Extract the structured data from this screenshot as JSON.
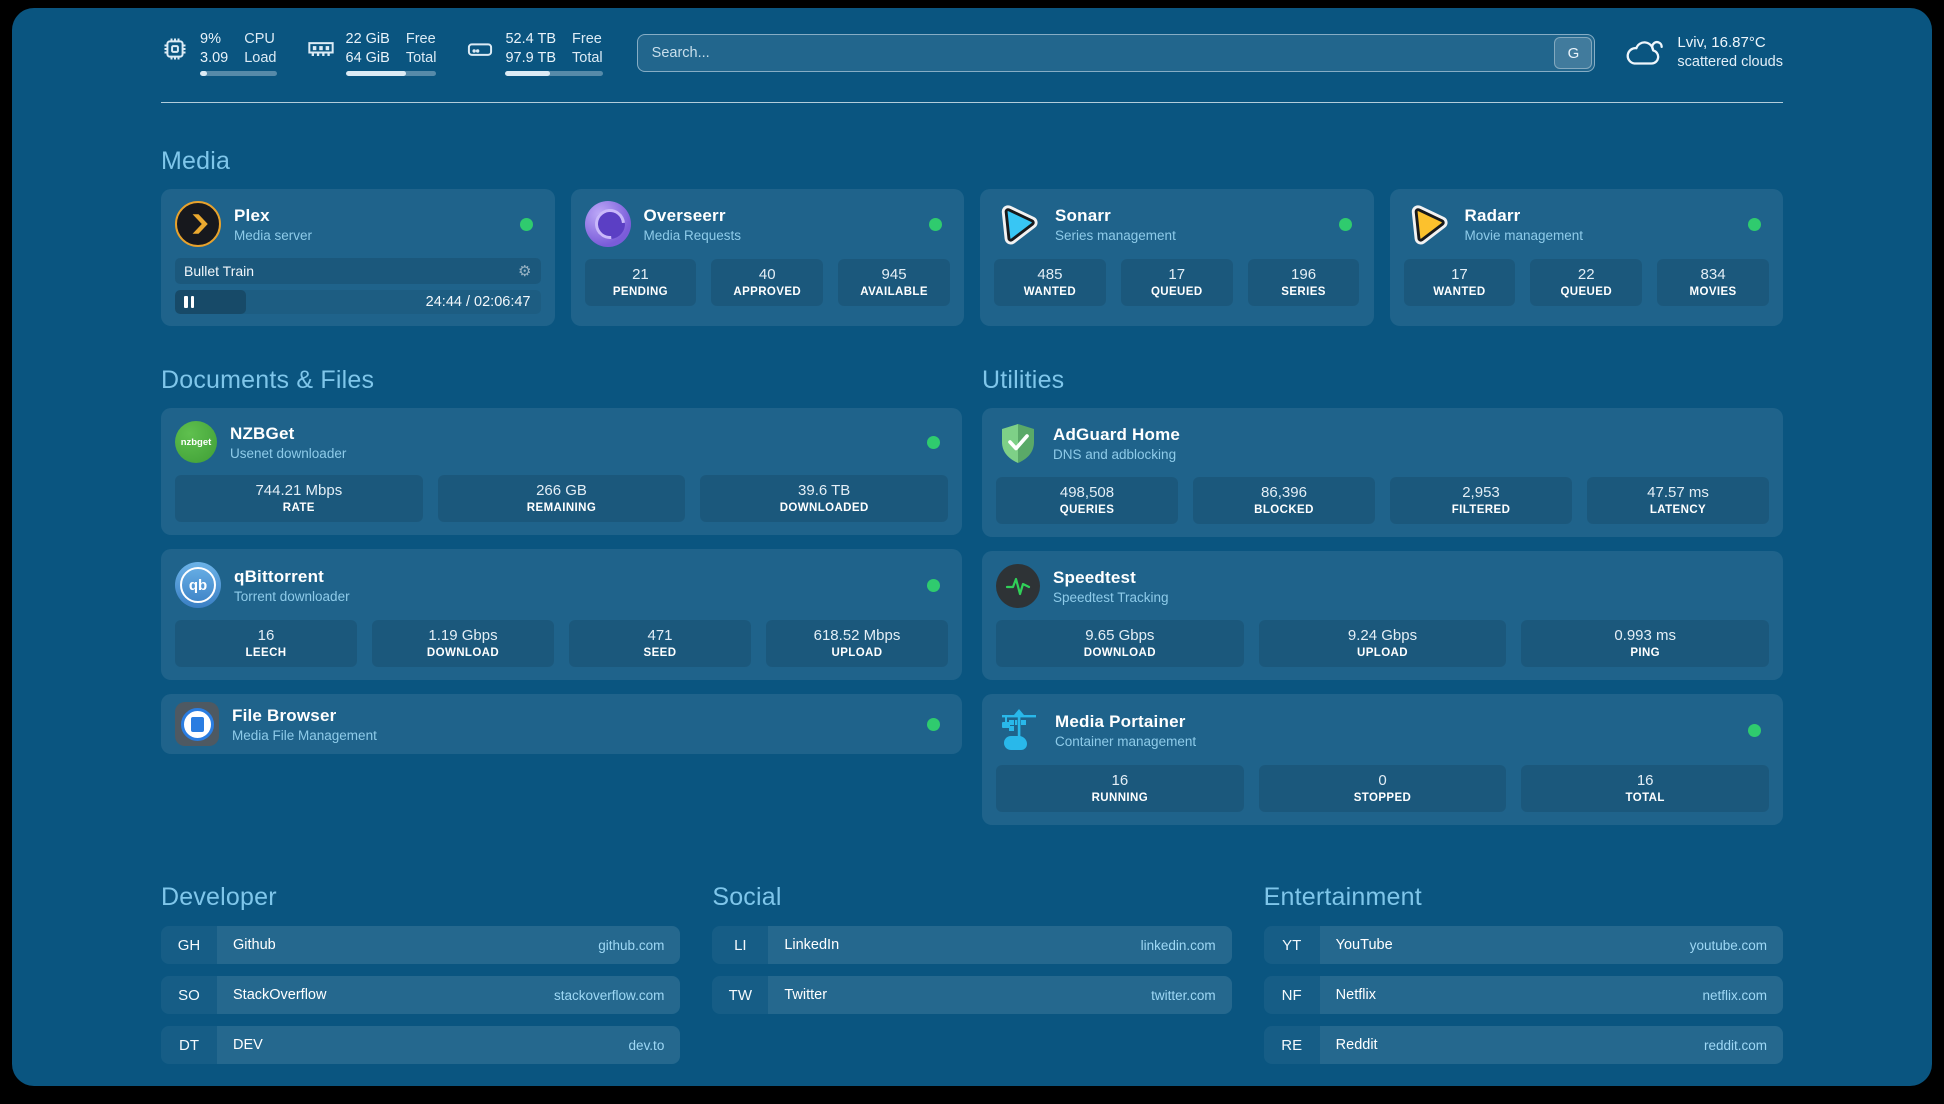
{
  "colors": {
    "background": "#0a5580",
    "status-online": "#2fcb6e",
    "accent": "#7fc6ea",
    "plex-gold": "#eba92f",
    "sonarr-blue": "#38c6f4",
    "radarr-orange": "#fcc12d",
    "overseerr-purple": "#8a6cf0",
    "nzbget-green": "#3f9e36",
    "qbittorrent-blue": "#4a90d9",
    "adguard-green": "#68bc71",
    "speedtest-green": "#30d158",
    "portainer-blue": "#29b8ea"
  },
  "topbar": {
    "cpu": {
      "value_top": "9%",
      "value_bottom": "3.09",
      "label_top": "CPU",
      "label_bottom": "Load",
      "progress": 9
    },
    "memory": {
      "value_top": "22 GiB",
      "value_bottom": "64 GiB",
      "label_top": "Free",
      "label_bottom": "Total",
      "progress": 66
    },
    "disk": {
      "value_top": "52.4 TB",
      "value_bottom": "97.9 TB",
      "label_top": "Free",
      "label_bottom": "Total",
      "progress": 46
    },
    "search": {
      "placeholder": "Search...",
      "engine_button": "G"
    },
    "weather": {
      "location": "Lviv, 16.87°C",
      "condition": "scattered clouds"
    }
  },
  "media": {
    "title": "Media",
    "plex": {
      "name": "Plex",
      "description": "Media server",
      "status": "online",
      "now_playing": "Bullet Train",
      "time_display": "24:44 / 02:06:47",
      "progress": 19.5
    },
    "overseerr": {
      "name": "Overseerr",
      "description": "Media Requests",
      "status": "online",
      "stats": [
        {
          "value": "21",
          "label": "PENDING"
        },
        {
          "value": "40",
          "label": "APPROVED"
        },
        {
          "value": "945",
          "label": "AVAILABLE"
        }
      ]
    },
    "sonarr": {
      "name": "Sonarr",
      "description": "Series management",
      "status": "online",
      "stats": [
        {
          "value": "485",
          "label": "WANTED"
        },
        {
          "value": "17",
          "label": "QUEUED"
        },
        {
          "value": "196",
          "label": "SERIES"
        }
      ]
    },
    "radarr": {
      "name": "Radarr",
      "description": "Movie management",
      "status": "online",
      "stats": [
        {
          "value": "17",
          "label": "WANTED"
        },
        {
          "value": "22",
          "label": "QUEUED"
        },
        {
          "value": "834",
          "label": "MOVIES"
        }
      ]
    }
  },
  "documents": {
    "title": "Documents & Files",
    "nzbget": {
      "name": "NZBGet",
      "description": "Usenet downloader",
      "icon_text": "nzbget",
      "status": "online",
      "stats": [
        {
          "value": "744.21 Mbps",
          "label": "RATE"
        },
        {
          "value": "266 GB",
          "label": "REMAINING"
        },
        {
          "value": "39.6 TB",
          "label": "DOWNLOADED"
        }
      ]
    },
    "qbittorrent": {
      "name": "qBittorrent",
      "description": "Torrent downloader",
      "icon_text": "qb",
      "status": "online",
      "stats": [
        {
          "value": "16",
          "label": "LEECH"
        },
        {
          "value": "1.19 Gbps",
          "label": "DOWNLOAD"
        },
        {
          "value": "471",
          "label": "SEED"
        },
        {
          "value": "618.52 Mbps",
          "label": "UPLOAD"
        }
      ]
    },
    "filebrowser": {
      "name": "File Browser",
      "description": "Media File Management",
      "status": "online"
    }
  },
  "utilities": {
    "title": "Utilities",
    "adguard": {
      "name": "AdGuard Home",
      "description": "DNS and adblocking",
      "stats": [
        {
          "value": "498,508",
          "label": "QUERIES"
        },
        {
          "value": "86,396",
          "label": "BLOCKED"
        },
        {
          "value": "2,953",
          "label": "FILTERED"
        },
        {
          "value": "47.57 ms",
          "label": "LATENCY"
        }
      ]
    },
    "speedtest": {
      "name": "Speedtest",
      "description": "Speedtest Tracking",
      "stats": [
        {
          "value": "9.65 Gbps",
          "label": "DOWNLOAD"
        },
        {
          "value": "9.24 Gbps",
          "label": "UPLOAD"
        },
        {
          "value": "0.993 ms",
          "label": "PING"
        }
      ]
    },
    "portainer": {
      "name": "Media Portainer",
      "description": "Container management",
      "status": "online",
      "stats": [
        {
          "value": "16",
          "label": "RUNNING"
        },
        {
          "value": "0",
          "label": "STOPPED"
        },
        {
          "value": "16",
          "label": "TOTAL"
        }
      ]
    }
  },
  "bookmarks": {
    "developer": {
      "title": "Developer",
      "items": [
        {
          "abbr": "GH",
          "name": "Github",
          "url": "github.com"
        },
        {
          "abbr": "SO",
          "name": "StackOverflow",
          "url": "stackoverflow.com"
        },
        {
          "abbr": "DT",
          "name": "DEV",
          "url": "dev.to"
        }
      ]
    },
    "social": {
      "title": "Social",
      "items": [
        {
          "abbr": "LI",
          "name": "LinkedIn",
          "url": "linkedin.com"
        },
        {
          "abbr": "TW",
          "name": "Twitter",
          "url": "twitter.com"
        }
      ]
    },
    "entertainment": {
      "title": "Entertainment",
      "items": [
        {
          "abbr": "YT",
          "name": "YouTube",
          "url": "youtube.com"
        },
        {
          "abbr": "NF",
          "name": "Netflix",
          "url": "netflix.com"
        },
        {
          "abbr": "RE",
          "name": "Reddit",
          "url": "reddit.com"
        }
      ]
    }
  }
}
